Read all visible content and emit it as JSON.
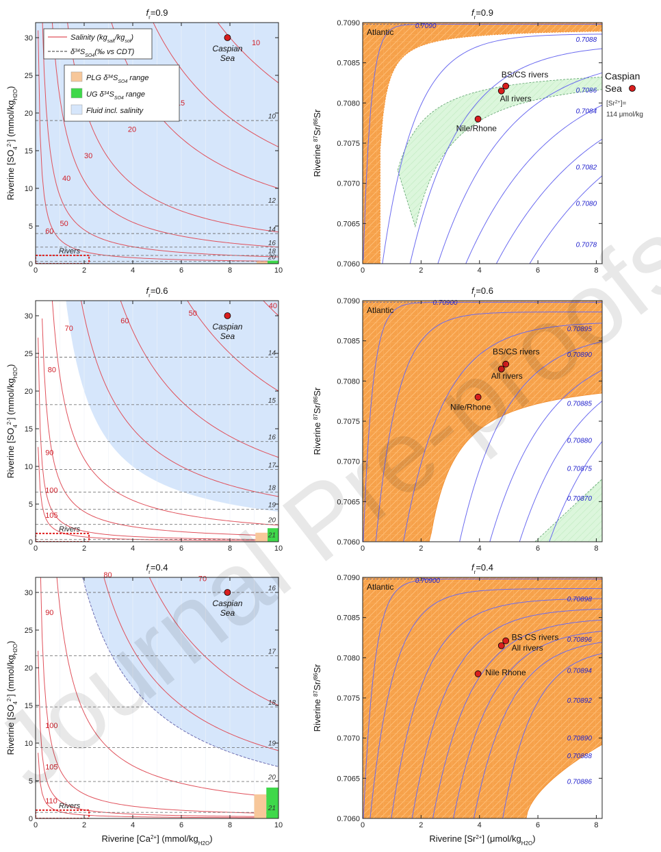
{
  "panels": [
    {
      "id": "ca-0.9",
      "kind": "ca",
      "title_main": "f",
      "title_sub": "r",
      "title_rest": "=0.9",
      "show_ylabel": true,
      "show_xlabel": false,
      "x_ticks": [
        "0",
        "2",
        "4",
        "6",
        "8",
        "10"
      ],
      "y_ticks": [
        "0",
        "5",
        "10",
        "15",
        "20",
        "25",
        "30"
      ],
      "fluid_boundary_k": 2.0,
      "salinity_curves": [
        {
          "label": "10",
          "k": 240,
          "lx": 8.9,
          "ly": 29.0
        },
        {
          "label": "15",
          "k": 155,
          "lx": 5.8,
          "ly": 21.0
        },
        {
          "label": "20",
          "k": 100,
          "lx": 3.8,
          "ly": 17.5
        },
        {
          "label": "30",
          "k": 42,
          "lx": 2.0,
          "ly": 14.0
        },
        {
          "label": "40",
          "k": 22,
          "lx": 1.1,
          "ly": 11.0
        },
        {
          "label": "50",
          "k": 9,
          "lx": 1.0,
          "ly": 5.0
        },
        {
          "label": "60",
          "k": 3.2,
          "lx": 0.4,
          "ly": 4.0
        }
      ],
      "d34s_lines": [
        {
          "label": "10",
          "y": 19.0
        },
        {
          "label": "12",
          "y": 7.8
        },
        {
          "label": "14",
          "y": 4.0
        },
        {
          "label": "16",
          "y": 2.2
        },
        {
          "label": "18",
          "y": 1.1
        },
        {
          "label": "20",
          "y": 0.3
        }
      ],
      "rivers_label": "Rivers",
      "rivers_box": {
        "x1": 0,
        "x2": 2.2,
        "y1": 0,
        "y2": 1.1
      },
      "plg_range": {
        "x1": 9.1,
        "x2": 9.55,
        "y1": 0,
        "y2": 0.3
      },
      "ug_range": {
        "x1": 9.55,
        "x2": 10,
        "y1": 0,
        "y2": 0.4
      },
      "caspian": {
        "x": 7.9,
        "y": 30.0,
        "label": "Caspian",
        "label2": "Sea"
      },
      "legend": {
        "salinity": "Salinity (kg",
        "salinity_sub1": "salt",
        "salinity_mid": "/kg",
        "salinity_sub2": "sol",
        "salinity_end": ")",
        "d34s_pre": "δ",
        "d34s_sup": "34",
        "d34s_S": "S",
        "d34s_sub": "SO4",
        "d34s_end": "(‰ vs CDT)",
        "plg_pre": "PLG δ",
        "plg_sup": "34",
        "plg_S": "S",
        "plg_sub": "SO4",
        "plg_end": "range",
        "ug_pre": "UG δ",
        "ug_sup": "34",
        "ug_S": "S",
        "ug_sub": "SO4",
        "ug_end": "range",
        "fluid": "Fluid incl. salinity"
      }
    },
    {
      "id": "ca-0.6",
      "kind": "ca",
      "title_main": "f",
      "title_sub": "r",
      "title_rest": "=0.6",
      "show_ylabel": true,
      "show_xlabel": false,
      "x_ticks": [
        "0",
        "2",
        "4",
        "6",
        "8",
        "10"
      ],
      "y_ticks": [
        "0",
        "5",
        "10",
        "15",
        "20",
        "25",
        "30"
      ],
      "fluid_boundary_k": 40,
      "salinity_curves": [
        {
          "label": "40",
          "k": 300,
          "lx": 9.6,
          "ly": 31.0
        },
        {
          "label": "50",
          "k": 200,
          "lx": 6.3,
          "ly": 30.0
        },
        {
          "label": "60",
          "k": 112,
          "lx": 3.5,
          "ly": 29.0
        },
        {
          "label": "70",
          "k": 60,
          "lx": 1.2,
          "ly": 28.0
        },
        {
          "label": "80",
          "k": 22,
          "lx": 0.5,
          "ly": 22.5
        },
        {
          "label": "90",
          "k": 8,
          "lx": 0.4,
          "ly": 11.5
        },
        {
          "label": "100",
          "k": 2.8,
          "lx": 0.4,
          "ly": 6.5
        },
        {
          "label": "105",
          "k": 1.3,
          "lx": 0.4,
          "ly": 3.2
        }
      ],
      "d34s_lines": [
        {
          "label": "14",
          "y": 24.5
        },
        {
          "label": "15",
          "y": 18.2
        },
        {
          "label": "16",
          "y": 13.3
        },
        {
          "label": "17",
          "y": 9.6
        },
        {
          "label": "18",
          "y": 6.6
        },
        {
          "label": "19",
          "y": 4.3
        },
        {
          "label": "20",
          "y": 2.3
        },
        {
          "label": "21",
          "y": 0.3
        }
      ],
      "rivers_label": "Rivers",
      "rivers_box": {
        "x1": 0,
        "x2": 2.2,
        "y1": 0,
        "y2": 1.1
      },
      "plg_range": {
        "x1": 9.05,
        "x2": 9.55,
        "y1": 0,
        "y2": 1.2
      },
      "ug_range": {
        "x1": 9.55,
        "x2": 10,
        "y1": 0,
        "y2": 1.8
      },
      "caspian": {
        "x": 7.9,
        "y": 30.0,
        "label": "Caspian",
        "label2": "Sea"
      }
    },
    {
      "id": "ca-0.4",
      "kind": "ca",
      "title_main": "f",
      "title_sub": "r",
      "title_rest": "=0.4",
      "show_ylabel": true,
      "show_xlabel": true,
      "x_ticks": [
        "0",
        "2",
        "4",
        "6",
        "8",
        "10"
      ],
      "y_ticks": [
        "0",
        "5",
        "10",
        "15",
        "20",
        "25",
        "30"
      ],
      "fluid_boundary_k": 90,
      "fluid_boundary_offset": 2.5,
      "salinity_curves": [
        {
          "label": "70",
          "k": 150,
          "lx": 6.7,
          "ly": 31.5
        },
        {
          "label": "80",
          "k": 90,
          "lx": 2.8,
          "ly": 32.0
        },
        {
          "label": "90",
          "k": 28,
          "lx": 0.4,
          "ly": 27.0
        },
        {
          "label": "100",
          "k": 6.5,
          "lx": 0.4,
          "ly": 12.0
        },
        {
          "label": "105",
          "k": 2.3,
          "lx": 0.4,
          "ly": 6.5
        },
        {
          "label": "110",
          "k": 0.9,
          "lx": 0.4,
          "ly": 2.0
        }
      ],
      "d34s_lines": [
        {
          "label": "16",
          "y": 30.0
        },
        {
          "label": "17",
          "y": 21.6
        },
        {
          "label": "18",
          "y": 14.8
        },
        {
          "label": "19",
          "y": 9.4
        },
        {
          "label": "20",
          "y": 4.9
        },
        {
          "label": "21",
          "y": 0.8
        }
      ],
      "rivers_label": "Rivers",
      "rivers_box": {
        "x1": 0,
        "x2": 2.2,
        "y1": 0,
        "y2": 1.1
      },
      "plg_range": {
        "x1": 9.0,
        "x2": 9.5,
        "y1": 0,
        "y2": 3.2
      },
      "ug_range": {
        "x1": 9.5,
        "x2": 10,
        "y1": 0,
        "y2": 4.1
      },
      "caspian": {
        "x": 7.9,
        "y": 30.0,
        "label": "Caspian",
        "label2": "Sea"
      }
    },
    {
      "id": "sr-0.9",
      "kind": "sr",
      "title_main": "f",
      "title_sub": "r",
      "title_rest": "=0.9",
      "show_ylabel": true,
      "show_xlabel": false,
      "x_ticks": [
        "0",
        "2",
        "4",
        "6",
        "8"
      ],
      "y_ticks": [
        "0.7060",
        "0.7065",
        "0.7070",
        "0.7075",
        "0.7080",
        "0.7085",
        "0.7090"
      ],
      "atlantic": "Atlantic",
      "orange_region": {
        "type": "upper-left",
        "inner_k": 0.6,
        "outer_k": 0.0,
        "x0": 0.0,
        "band": 0.00045
      },
      "green_region": {
        "a": 1.6,
        "b": 2.6,
        "k": 3.0
      },
      "contours": [
        {
          "label": "0.7090",
          "x0": 0.0,
          "k": 0.4,
          "lx": 1.8,
          "ly": 0.70893
        },
        {
          "label": "0.7088",
          "x0": 0.6,
          "k": 1.8,
          "lx": 7.3,
          "ly": 0.70876
        },
        {
          "label": "0.7086",
          "x0": 1.5,
          "k": 2.8,
          "lx": 7.3,
          "ly": 0.70813
        },
        {
          "label": "0.7084",
          "x0": 2.4,
          "k": 3.8,
          "lx": 7.3,
          "ly": 0.70787
        },
        {
          "label": "0.7082",
          "x0": 3.3,
          "k": 4.8,
          "lx": 7.3,
          "ly": 0.70717
        },
        {
          "label": "0.7080",
          "x0": 4.3,
          "k": 5.5,
          "lx": 7.3,
          "ly": 0.70672
        },
        {
          "label": "0.7078",
          "x0": 5.4,
          "k": 6.0,
          "lx": 7.3,
          "ly": 0.70621
        }
      ],
      "points": [
        {
          "name": "bs-cs",
          "x": 4.9,
          "y": 0.70821,
          "label": "BS/CS rivers",
          "lx": 4.75,
          "ly": 0.70832
        },
        {
          "name": "all",
          "x": 4.75,
          "y": 0.70815,
          "label": "All rivers",
          "lx": 4.7,
          "ly": 0.70802
        },
        {
          "name": "nile",
          "x": 3.95,
          "y": 0.7078,
          "label": "Nile/Rhone",
          "lx": 3.2,
          "ly": 0.70765
        }
      ],
      "caspian_note": {
        "label": "Caspian",
        "label2": "Sea",
        "sr_pre": "[Sr",
        "sr_sup": "2+",
        "sr_end": "]=",
        "value": "114 μmol/kg"
      }
    },
    {
      "id": "sr-0.6",
      "kind": "sr",
      "title_main": "f",
      "title_sub": "r",
      "title_rest": "=0.6",
      "show_ylabel": true,
      "show_xlabel": false,
      "x_ticks": [
        "0",
        "2",
        "4",
        "6",
        "8"
      ],
      "y_ticks": [
        "0.7060",
        "0.7065",
        "0.7070",
        "0.7075",
        "0.7080",
        "0.7085",
        "0.7090"
      ],
      "atlantic": "Atlantic",
      "orange_region": {
        "type": "upper-left-wide",
        "boundary_x0": 2.2,
        "boundary_k": 3.0
      },
      "green_region": {
        "corner": true
      },
      "contours": [
        {
          "label": "0.70900",
          "x0": 0.0,
          "k": 0.5,
          "lx": 2.4,
          "ly": 0.70895
        },
        {
          "label": "0.70895",
          "x0": 0.4,
          "k": 1.2,
          "lx": 7.0,
          "ly": 0.70862
        },
        {
          "label": "0.70890",
          "x0": 1.3,
          "k": 2.2,
          "lx": 7.0,
          "ly": 0.7083
        },
        {
          "label": "0.70885",
          "x0": 3.2,
          "k": 2.6,
          "lx": 7.0,
          "ly": 0.70769
        },
        {
          "label": "0.70880",
          "x0": 4.2,
          "k": 3.2,
          "lx": 7.0,
          "ly": 0.70723
        },
        {
          "label": "0.70875",
          "x0": 5.2,
          "k": 3.4,
          "lx": 7.0,
          "ly": 0.70688
        },
        {
          "label": "0.70870",
          "x0": 6.2,
          "k": 3.6,
          "lx": 7.0,
          "ly": 0.70651
        }
      ],
      "points": [
        {
          "name": "bs-cs",
          "x": 4.9,
          "y": 0.70821,
          "label": "BS/CS rivers",
          "lx": 4.45,
          "ly": 0.70833
        },
        {
          "name": "all",
          "x": 4.75,
          "y": 0.70815,
          "label": "All rivers",
          "lx": 4.4,
          "ly": 0.70803
        },
        {
          "name": "nile",
          "x": 3.95,
          "y": 0.7078,
          "label": "Nile/Rhone",
          "lx": 3.0,
          "ly": 0.70764
        }
      ]
    },
    {
      "id": "sr-0.4",
      "kind": "sr",
      "title_main": "f",
      "title_sub": "r",
      "title_rest": "=0.4",
      "show_ylabel": true,
      "show_xlabel": true,
      "x_ticks": [
        "0",
        "2",
        "4",
        "6",
        "8"
      ],
      "y_ticks": [
        "0.7060",
        "0.7065",
        "0.7070",
        "0.7075",
        "0.7080",
        "0.7085",
        "0.7090"
      ],
      "atlantic": "Atlantic",
      "orange_region": {
        "type": "almost-all",
        "boundary_x0": 5.6,
        "boundary_k": 1.4
      },
      "contours": [
        {
          "label": "0.70900",
          "x0": 0.0,
          "k": 0.6,
          "lx": 1.8,
          "ly": 0.70893
        },
        {
          "label": "0.70898",
          "x0": 0.2,
          "k": 1.3,
          "lx": 7.0,
          "ly": 0.7087
        },
        {
          "label": "0.70896",
          "x0": 0.9,
          "k": 1.8,
          "lx": 7.0,
          "ly": 0.7082
        },
        {
          "label": "0.70894",
          "x0": 1.6,
          "k": 2.0,
          "lx": 7.0,
          "ly": 0.70781
        },
        {
          "label": "0.70892",
          "x0": 2.3,
          "k": 2.1,
          "lx": 7.0,
          "ly": 0.70744
        },
        {
          "label": "0.70890",
          "x0": 3.0,
          "k": 2.1,
          "lx": 7.0,
          "ly": 0.70697
        },
        {
          "label": "0.70888",
          "x0": 3.7,
          "k": 2.0,
          "lx": 7.0,
          "ly": 0.70675
        },
        {
          "label": "0.70886",
          "x0": 4.7,
          "k": 1.7,
          "lx": 7.0,
          "ly": 0.70643
        }
      ],
      "points": [
        {
          "name": "bs-cs",
          "x": 4.9,
          "y": 0.70821,
          "label": "BS CS rivers",
          "lx": 5.1,
          "ly": 0.70822
        },
        {
          "name": "all",
          "x": 4.75,
          "y": 0.70815,
          "label": "All rivers",
          "lx": 5.1,
          "ly": 0.70809
        },
        {
          "name": "nile",
          "x": 3.95,
          "y": 0.7078,
          "label": "Nile Rhone",
          "lx": 4.2,
          "ly": 0.70778
        }
      ]
    }
  ],
  "axis_labels": {
    "ca_y_pre": "Riverine [SO",
    "ca_y_sub": "4",
    "ca_y_sup": "2-",
    "ca_y_mid": "] (mmol/kg",
    "ca_y_sub2": "H2O",
    "ca_y_end": ")",
    "ca_x_pre": "Riverine [Ca",
    "ca_x_sup": "2+",
    "ca_x_mid": "] (mmol/kg",
    "ca_x_sub": "H2O",
    "ca_x_end": ")",
    "sr_y_pre": "Riverine ",
    "sr_y_sup1": "87",
    "sr_y_mid": "Sr/",
    "sr_y_sup2": "86",
    "sr_y_end": "Sr",
    "sr_x_pre": "Riverine [Sr",
    "sr_x_sup": "2+",
    "sr_x_mid": "] (μmol/kg",
    "sr_x_sub": "H2O",
    "sr_x_end": ")"
  },
  "watermark": "Journal Pre-proofs",
  "colors": {
    "salinity": "#e0505a",
    "salinity_label": "#d0202a",
    "d34s": "#777777",
    "fluid": "#d6e6fb",
    "plg": "#f7c79a",
    "ug": "#3fd84a",
    "orange": "#f6a14a",
    "orange_hatch": "#ffb866",
    "green_band": "#d6f5d6",
    "contour": "#6a6af0",
    "contour_label": "#2020cc",
    "point": "#d81e1e"
  },
  "chart_data": [
    {
      "type": "line",
      "title": "fr=0.9",
      "xlabel": "Riverine [Ca2+] (mmol/kgH2O)",
      "ylabel": "Riverine [SO42-] (mmol/kgH2O)",
      "xlim": [
        0,
        10
      ],
      "ylim": [
        0,
        32
      ],
      "series": [
        {
          "name": "Salinity (kgsalt/kgsol)",
          "labels": [
            "10",
            "15",
            "20",
            "30",
            "40",
            "50",
            "60"
          ]
        },
        {
          "name": "δ34SSO4(‰ vs CDT)",
          "labels": [
            "10",
            "12",
            "14",
            "16",
            "18",
            "20"
          ],
          "y": [
            19.0,
            7.8,
            4.0,
            2.2,
            1.1,
            0.3
          ]
        }
      ],
      "points": [
        {
          "label": "Caspian Sea",
          "x": 7.9,
          "y": 30.0
        }
      ]
    },
    {
      "type": "line",
      "title": "fr=0.6",
      "xlim": [
        0,
        10
      ],
      "ylim": [
        0,
        32
      ],
      "series": [
        {
          "name": "Salinity",
          "labels": [
            "40",
            "50",
            "60",
            "70",
            "80",
            "90",
            "100",
            "105"
          ]
        },
        {
          "name": "δ34S",
          "labels": [
            "14",
            "15",
            "16",
            "17",
            "18",
            "19",
            "20",
            "21"
          ],
          "y": [
            24.5,
            18.2,
            13.3,
            9.6,
            6.6,
            4.3,
            2.3,
            0.3
          ]
        }
      ],
      "points": [
        {
          "label": "Caspian Sea",
          "x": 7.9,
          "y": 30.0
        }
      ]
    },
    {
      "type": "line",
      "title": "fr=0.4",
      "xlim": [
        0,
        10
      ],
      "ylim": [
        0,
        32
      ],
      "series": [
        {
          "name": "Salinity",
          "labels": [
            "70",
            "80",
            "90",
            "100",
            "105",
            "110"
          ]
        },
        {
          "name": "δ34S",
          "labels": [
            "16",
            "17",
            "18",
            "19",
            "20",
            "21"
          ],
          "y": [
            30.0,
            21.6,
            14.8,
            9.4,
            4.9,
            0.8
          ]
        }
      ],
      "points": [
        {
          "label": "Caspian Sea",
          "x": 7.9,
          "y": 30.0
        }
      ]
    },
    {
      "type": "line",
      "title": "fr=0.9",
      "xlabel": "Riverine [Sr2+] (μmol/kgH2O)",
      "ylabel": "Riverine 87Sr/86Sr",
      "xlim": [
        0,
        8.2
      ],
      "ylim": [
        0.706,
        0.709
      ],
      "contour_labels": [
        "0.7090",
        "0.7088",
        "0.7086",
        "0.7084",
        "0.7082",
        "0.7080",
        "0.7078"
      ],
      "points": [
        {
          "label": "BS/CS rivers",
          "x": 4.9,
          "y": 0.70821
        },
        {
          "label": "All rivers",
          "x": 4.75,
          "y": 0.70815
        },
        {
          "label": "Nile/Rhone",
          "x": 3.95,
          "y": 0.7078
        }
      ]
    },
    {
      "type": "line",
      "title": "fr=0.6",
      "xlim": [
        0,
        8.2
      ],
      "ylim": [
        0.706,
        0.709
      ],
      "contour_labels": [
        "0.70900",
        "0.70895",
        "0.70890",
        "0.70885",
        "0.70880",
        "0.70875",
        "0.70870"
      ],
      "points": [
        {
          "label": "BS/CS rivers",
          "x": 4.9,
          "y": 0.70821
        },
        {
          "label": "All rivers",
          "x": 4.75,
          "y": 0.70815
        },
        {
          "label": "Nile/Rhone",
          "x": 3.95,
          "y": 0.7078
        }
      ]
    },
    {
      "type": "line",
      "title": "fr=0.4",
      "xlim": [
        0,
        8.2
      ],
      "ylim": [
        0.706,
        0.709
      ],
      "contour_labels": [
        "0.70900",
        "0.70898",
        "0.70896",
        "0.70894",
        "0.70892",
        "0.70890",
        "0.70888",
        "0.70886"
      ],
      "points": [
        {
          "label": "BS CS rivers",
          "x": 4.9,
          "y": 0.70821
        },
        {
          "label": "All rivers",
          "x": 4.75,
          "y": 0.70815
        },
        {
          "label": "Nile Rhone",
          "x": 3.95,
          "y": 0.7078
        }
      ]
    }
  ]
}
